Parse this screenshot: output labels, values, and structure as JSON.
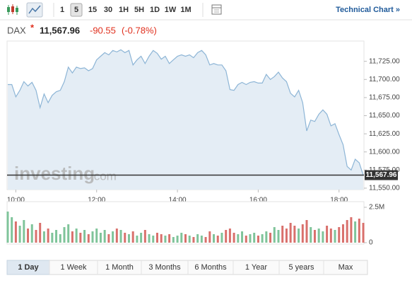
{
  "toolbar": {
    "intervals": [
      "1",
      "5",
      "15",
      "30",
      "1H",
      "5H",
      "1D",
      "1W",
      "1M"
    ],
    "active": "5",
    "technical_chart": "Technical Chart »"
  },
  "header": {
    "symbol": "DAX",
    "marker": "*",
    "price": "11,567.96",
    "change": "-90.55",
    "change_pct": "(-0.78%)"
  },
  "watermark": {
    "brand": "investing",
    "suffix": ".com"
  },
  "chart_data": [
    {
      "type": "area",
      "color": "#8db5d6",
      "fill": "#e4edf5",
      "line_color": "#333333",
      "x": [
        "09:48",
        "09:54",
        "10:00",
        "10:06",
        "10:12",
        "10:18",
        "10:24",
        "10:30",
        "10:36",
        "10:42",
        "10:48",
        "10:54",
        "11:00",
        "11:06",
        "11:12",
        "11:18",
        "11:24",
        "11:30",
        "11:36",
        "11:42",
        "11:48",
        "11:54",
        "12:00",
        "12:06",
        "12:12",
        "12:18",
        "12:24",
        "12:30",
        "12:36",
        "12:42",
        "12:48",
        "12:54",
        "13:00",
        "13:06",
        "13:12",
        "13:18",
        "13:24",
        "13:30",
        "13:36",
        "13:42",
        "13:48",
        "13:54",
        "14:00",
        "14:06",
        "14:12",
        "14:18",
        "14:24",
        "14:30",
        "14:36",
        "14:42",
        "14:48",
        "14:54",
        "15:00",
        "15:06",
        "15:12",
        "15:18",
        "15:24",
        "15:30",
        "15:36",
        "15:42",
        "15:48",
        "15:54",
        "16:00",
        "16:06",
        "16:12",
        "16:18",
        "16:24",
        "16:30",
        "16:36",
        "16:42",
        "16:48",
        "16:54",
        "17:00",
        "17:06",
        "17:12",
        "17:18",
        "17:24",
        "17:30",
        "17:36",
        "17:42",
        "17:48",
        "17:54",
        "18:00",
        "18:06",
        "18:12",
        "18:18",
        "18:24",
        "18:30",
        "18:36"
      ],
      "values": [
        11693,
        11693,
        11676,
        11685,
        11697,
        11691,
        11696,
        11685,
        11661,
        11680,
        11668,
        11678,
        11683,
        11685,
        11697,
        11717,
        11709,
        11717,
        11715,
        11716,
        11712,
        11715,
        11727,
        11732,
        11737,
        11734,
        11740,
        11738,
        11741,
        11737,
        11740,
        11720,
        11727,
        11732,
        11722,
        11732,
        11740,
        11736,
        11728,
        11732,
        11722,
        11727,
        11732,
        11734,
        11732,
        11734,
        11730,
        11737,
        11740,
        11734,
        11720,
        11722,
        11720,
        11720,
        11712,
        11686,
        11685,
        11693,
        11696,
        11693,
        11696,
        11697,
        11695,
        11695,
        11707,
        11700,
        11704,
        11710,
        11702,
        11697,
        11681,
        11676,
        11685,
        11668,
        11629,
        11644,
        11642,
        11652,
        11658,
        11652,
        11636,
        11639,
        11624,
        11610,
        11580,
        11575,
        11590,
        11585,
        11567.96
      ],
      "xlim": [
        "09:47",
        "18:37"
      ],
      "xticks": [
        "10:00",
        "12:00",
        "14:00",
        "16:00",
        "18:00"
      ],
      "ylim": [
        11548,
        11753
      ],
      "yticks": [
        {
          "value": 11550,
          "label": "11,550.00"
        },
        {
          "value": 11575,
          "label": "11,575.00"
        },
        {
          "value": 11600,
          "label": "11,600.00"
        },
        {
          "value": 11625,
          "label": "11,625.00"
        },
        {
          "value": 11650,
          "label": "11,650.00"
        },
        {
          "value": 11675,
          "label": "11,675.00"
        },
        {
          "value": 11700,
          "label": "11,700.00"
        },
        {
          "value": 11725,
          "label": "11,725.00"
        }
      ]
    },
    {
      "type": "bar",
      "up_color": "#7fc49a",
      "down_color": "#d9706c",
      "values": [
        2.2,
        1.8,
        1.5,
        1.2,
        1.6,
        1.0,
        1.3,
        0.9,
        1.4,
        0.8,
        1.0,
        0.7,
        0.9,
        0.6,
        1.1,
        1.3,
        0.8,
        1.0,
        0.7,
        0.9,
        0.6,
        0.8,
        1.0,
        0.7,
        0.9,
        0.6,
        0.8,
        1.0,
        0.9,
        0.7,
        0.6,
        0.8,
        0.5,
        0.7,
        0.9,
        0.6,
        0.5,
        0.7,
        0.6,
        0.5,
        0.6,
        0.4,
        0.5,
        0.7,
        0.6,
        0.5,
        0.4,
        0.6,
        0.5,
        0.4,
        0.8,
        0.6,
        0.5,
        0.7,
        0.9,
        1.0,
        0.7,
        0.6,
        0.8,
        0.5,
        0.6,
        0.7,
        0.5,
        0.6,
        0.8,
        0.7,
        1.1,
        0.9,
        1.2,
        1.0,
        1.4,
        1.2,
        1.0,
        1.3,
        1.6,
        1.1,
        0.9,
        1.0,
        0.8,
        1.2,
        1.0,
        0.9,
        1.1,
        1.3,
        1.6,
        1.8,
        1.5,
        1.7,
        1.4
      ],
      "ylim": [
        0,
        2.9
      ],
      "yticks": [
        0,
        {
          "value": 2.5,
          "label": "2.5M"
        }
      ]
    }
  ],
  "ranges": {
    "items": [
      "1 Day",
      "1 Week",
      "1 Month",
      "3 Months",
      "6 Months",
      "1 Year",
      "5 years",
      "Max"
    ],
    "active": "1 Day"
  }
}
